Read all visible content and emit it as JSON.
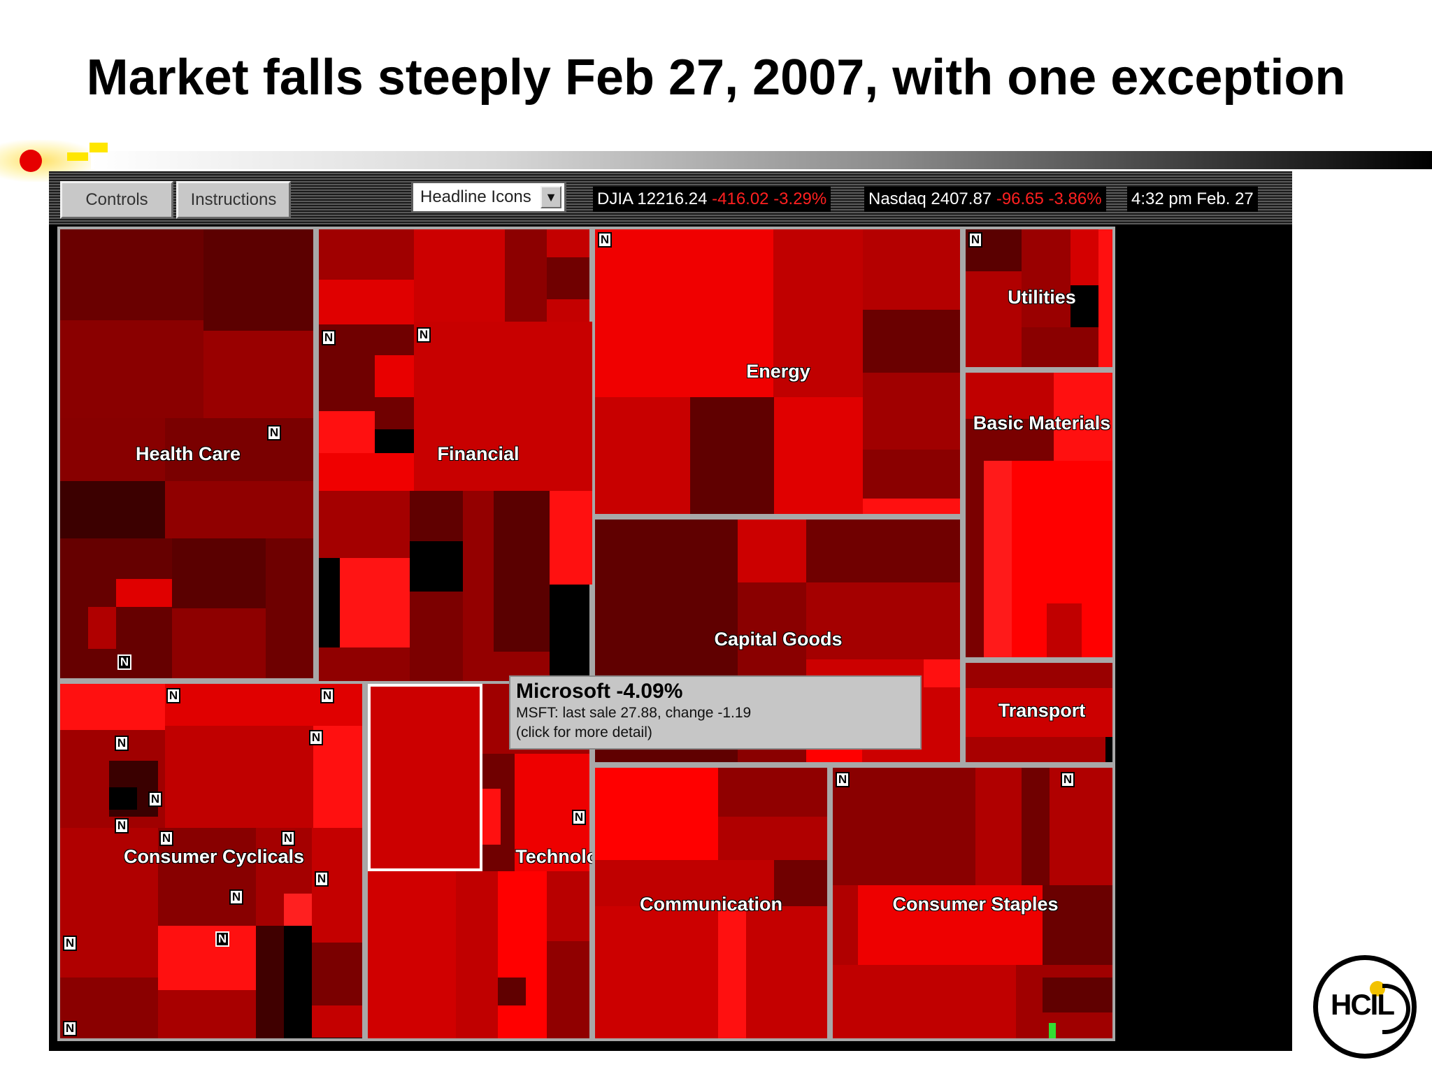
{
  "slide": {
    "title": "Market falls steeply Feb 27, 2007, with one exception"
  },
  "toolbar": {
    "controls_label": "Controls",
    "instructions_label": "Instructions",
    "view_select_value": "Headline Icons"
  },
  "ticker": {
    "djia_label": "DJIA 12216.24",
    "djia_change": "-416.02 -3.29%",
    "nasdaq_label": "Nasdaq 2407.87",
    "nasdaq_change": "-96.65 -3.86%",
    "time": "4:32 pm  Feb. 27"
  },
  "sectors": [
    "Health Care",
    "Financial",
    "Energy",
    "Utilities",
    "Basic Materials",
    "Capital Goods",
    "Transport",
    "Consumer Cyclicals",
    "Technology",
    "Communication",
    "Consumer Staples"
  ],
  "news_icon_label": "N",
  "tooltip": {
    "title": "Microsoft -4.09%",
    "detail": "MSFT: last sale 27.88,  change -1.19",
    "hint": "(click for more detail)"
  },
  "colors": {
    "dark": "#5a0000",
    "mid": "#a00000",
    "bright": "#ff0a0a",
    "gain": "#33dd33",
    "border": "#a8a8a8"
  },
  "logo": {
    "text": "HCIL"
  }
}
